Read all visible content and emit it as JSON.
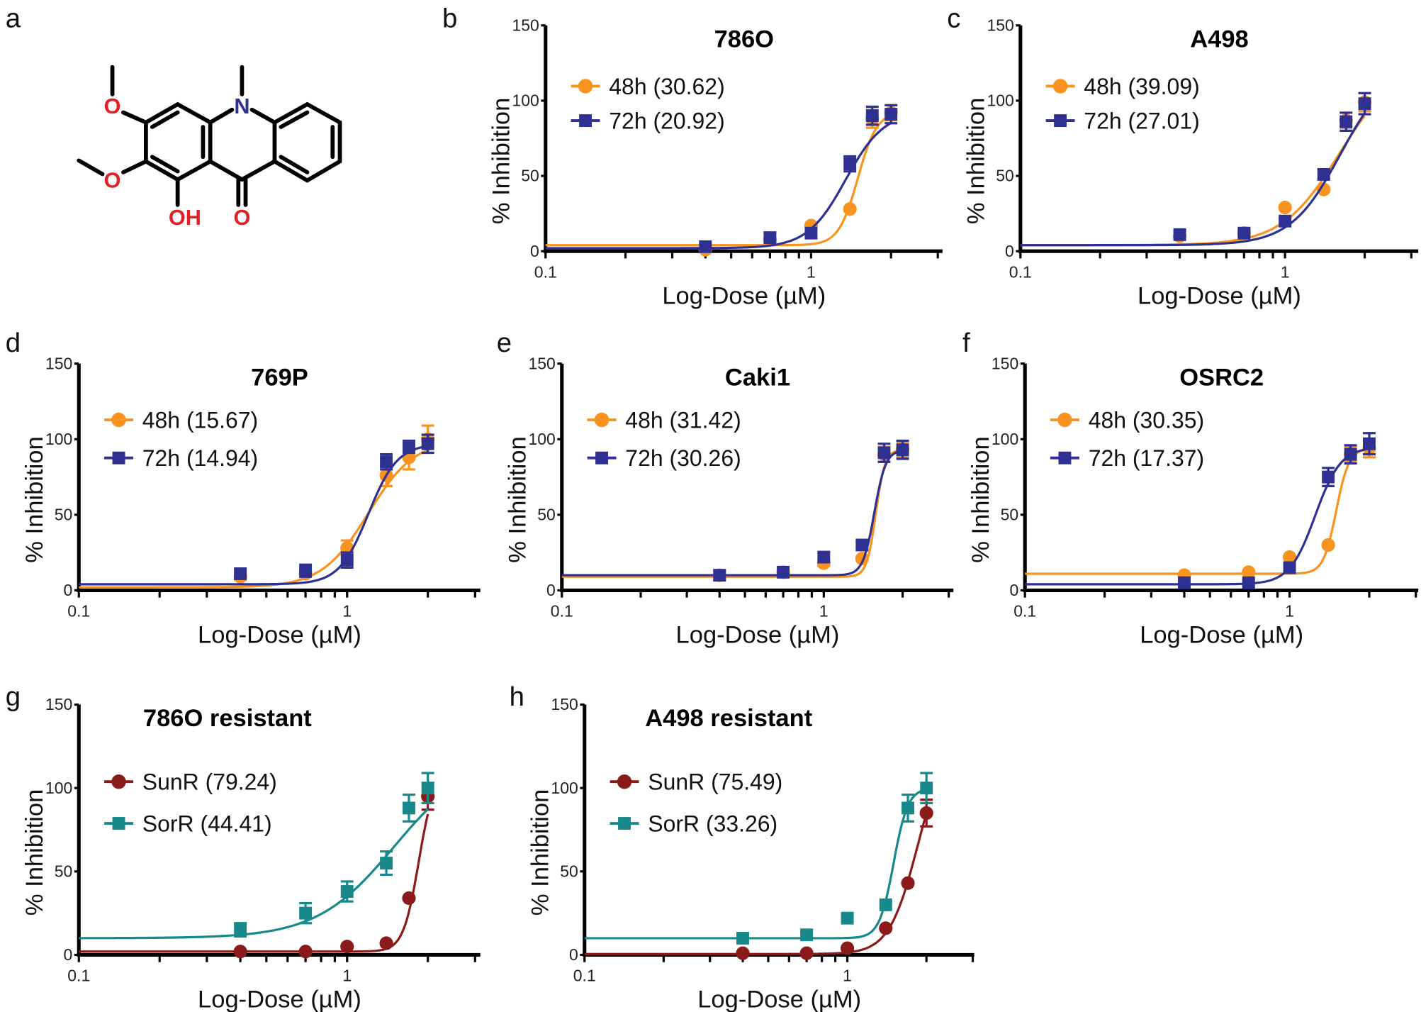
{
  "structure": {
    "panel_label": "a",
    "atoms": {
      "o_top": "O",
      "o_mid": "O",
      "oh": "OH",
      "o_keto": "O",
      "n": "N"
    },
    "colors": {
      "oxygen": "#E31E24",
      "nitrogen": "#2E3192",
      "bond": "#000000"
    }
  },
  "chart_data": [
    {
      "panel_label": "b",
      "type": "line",
      "title": "786O",
      "xlabel": "Log-Dose (µM)",
      "ylabel": "% Inhibition",
      "xscale": "log",
      "xlim": [
        0.1,
        3
      ],
      "ylim": [
        0,
        150
      ],
      "xticks": [
        "0.1",
        "1"
      ],
      "yticks": [
        0,
        50,
        100,
        150
      ],
      "legend": "top-left",
      "x": [
        0.4,
        0.7,
        1.0,
        1.4,
        1.7,
        2.0
      ],
      "series": [
        {
          "name": "48h (30.62)",
          "marker": "circle",
          "color": "#F7931E",
          "values": [
            1,
            8,
            17,
            28,
            88,
            92
          ],
          "errors": [
            0,
            0,
            0,
            0,
            6,
            5
          ]
        },
        {
          "name": "72h (20.92)",
          "marker": "square",
          "color": "#2E3192",
          "values": [
            3,
            9,
            12,
            58,
            90,
            91
          ],
          "errors": [
            2,
            3,
            3,
            5,
            6,
            6
          ]
        }
      ]
    },
    {
      "panel_label": "c",
      "type": "line",
      "title": "A498",
      "xlabel": "Log-Dose (µM)",
      "ylabel": "% Inhibition",
      "xscale": "log",
      "xlim": [
        0.1,
        3
      ],
      "ylim": [
        0,
        150
      ],
      "xticks": [
        "0.1",
        "1"
      ],
      "yticks": [
        0,
        50,
        100,
        150
      ],
      "legend": "top-left",
      "x": [
        0.4,
        0.7,
        1.0,
        1.4,
        1.7,
        2.0
      ],
      "series": [
        {
          "name": "48h (39.09)",
          "marker": "circle",
          "color": "#F7931E",
          "values": [
            10,
            12,
            29,
            41,
            87,
            99
          ],
          "errors": [
            0,
            2,
            0,
            0,
            5,
            6
          ]
        },
        {
          "name": "72h (27.01)",
          "marker": "square",
          "color": "#2E3192",
          "values": [
            11,
            12,
            20,
            51,
            86,
            98
          ],
          "errors": [
            2,
            2,
            2,
            3,
            6,
            7
          ]
        }
      ]
    },
    {
      "panel_label": "d",
      "type": "line",
      "title": "769P",
      "xlabel": "Log-Dose (µM)",
      "ylabel": "% Inhibition",
      "xscale": "log",
      "xlim": [
        0.1,
        3
      ],
      "ylim": [
        0,
        150
      ],
      "xticks": [
        "0.1",
        "1"
      ],
      "yticks": [
        0,
        50,
        100,
        150
      ],
      "legend": "top-left",
      "x": [
        0.4,
        0.7,
        1.0,
        1.4,
        1.7,
        2.0
      ],
      "series": [
        {
          "name": "48h (15.67)",
          "marker": "circle",
          "color": "#F7931E",
          "values": [
            9,
            11,
            28,
            76,
            88,
            100
          ],
          "errors": [
            2,
            2,
            5,
            7,
            8,
            9
          ]
        },
        {
          "name": "72h (14.94)",
          "marker": "square",
          "color": "#2E3192",
          "values": [
            11,
            13,
            20,
            85,
            95,
            97
          ],
          "errors": [
            3,
            4,
            5,
            5,
            4,
            6
          ]
        }
      ]
    },
    {
      "panel_label": "e",
      "type": "line",
      "title": "Caki1",
      "xlabel": "Log-Dose (µM)",
      "ylabel": "% Inhibition",
      "xscale": "log",
      "xlim": [
        0.1,
        3
      ],
      "ylim": [
        0,
        150
      ],
      "xticks": [
        "0.1",
        "1"
      ],
      "yticks": [
        0,
        50,
        100,
        150
      ],
      "legend": "top-left",
      "x": [
        0.4,
        0.7,
        1.0,
        1.4,
        1.7,
        2.0
      ],
      "series": [
        {
          "name": "48h (31.42)",
          "marker": "circle",
          "color": "#F7931E",
          "values": [
            10,
            12,
            18,
            21,
            90,
            93
          ],
          "errors": [
            2,
            2,
            2,
            0,
            5,
            5
          ]
        },
        {
          "name": "72h (30.26)",
          "marker": "square",
          "color": "#2E3192",
          "values": [
            10,
            12,
            22,
            30,
            91,
            93
          ],
          "errors": [
            3,
            3,
            3,
            2,
            6,
            6
          ]
        }
      ]
    },
    {
      "panel_label": "f",
      "type": "line",
      "title": "OSRC2",
      "xlabel": "Log-Dose (µM)",
      "ylabel": "% Inhibition",
      "xscale": "log",
      "xlim": [
        0.1,
        3
      ],
      "ylim": [
        0,
        150
      ],
      "xticks": [
        "0.1",
        "1"
      ],
      "yticks": [
        0,
        50,
        100,
        150
      ],
      "legend": "top-left",
      "x": [
        0.4,
        0.7,
        1.0,
        1.4,
        1.7,
        2.0
      ],
      "series": [
        {
          "name": "48h (30.35)",
          "marker": "circle",
          "color": "#F7931E",
          "values": [
            10,
            12,
            22,
            30,
            90,
            94
          ],
          "errors": [
            0,
            0,
            0,
            0,
            5,
            6
          ]
        },
        {
          "name": "72h (17.37)",
          "marker": "square",
          "color": "#2E3192",
          "values": [
            5,
            5,
            15,
            75,
            90,
            97
          ],
          "errors": [
            2,
            2,
            3,
            6,
            6,
            7
          ]
        }
      ]
    },
    {
      "panel_label": "g",
      "type": "line",
      "title": "786O resistant",
      "xlabel": "Log-Dose (µM)",
      "ylabel": "% Inhibition",
      "xscale": "log",
      "xlim": [
        0.1,
        3
      ],
      "ylim": [
        0,
        150
      ],
      "xticks": [
        "0.1",
        "1"
      ],
      "yticks": [
        0,
        50,
        100,
        150
      ],
      "legend": "top-left",
      "x": [
        0.4,
        0.7,
        1.0,
        1.4,
        1.7,
        2.0
      ],
      "series": [
        {
          "name": "SunR (79.24)",
          "marker": "circle",
          "color": "#8B1A1A",
          "values": [
            2,
            2,
            5,
            7,
            34,
            95
          ],
          "errors": [
            0,
            0,
            0,
            0,
            0,
            8
          ]
        },
        {
          "name": "SorR (44.41)",
          "marker": "square",
          "color": "#17898A",
          "values": [
            15,
            25,
            38,
            55,
            88,
            100
          ],
          "errors": [
            4,
            6,
            6,
            7,
            8,
            9
          ]
        }
      ]
    },
    {
      "panel_label": "h",
      "type": "line",
      "title": "A498 resistant",
      "xlabel": "Log-Dose (µM)",
      "ylabel": "% Inhibition",
      "xscale": "log",
      "xlim": [
        0.1,
        3
      ],
      "ylim": [
        0,
        150
      ],
      "xticks": [
        "0.1",
        "1"
      ],
      "yticks": [
        0,
        50,
        100,
        150
      ],
      "legend": "top-left",
      "x": [
        0.4,
        0.7,
        1.0,
        1.4,
        1.7,
        2.0
      ],
      "series": [
        {
          "name": "SunR (75.49)",
          "marker": "circle",
          "color": "#8B1A1A",
          "values": [
            1,
            1,
            4,
            16,
            43,
            85
          ],
          "errors": [
            0,
            0,
            0,
            0,
            0,
            8
          ]
        },
        {
          "name": "SorR (33.26)",
          "marker": "square",
          "color": "#17898A",
          "values": [
            10,
            12,
            22,
            30,
            88,
            100
          ],
          "errors": [
            2,
            2,
            2,
            2,
            8,
            9
          ]
        }
      ]
    }
  ]
}
